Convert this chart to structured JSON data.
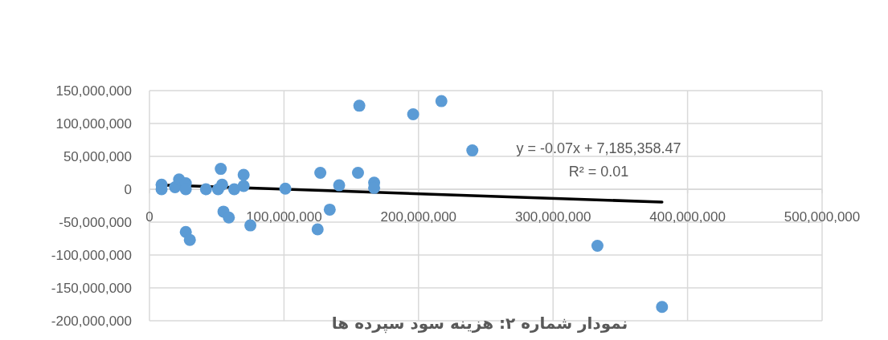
{
  "chart_data": {
    "type": "scatter",
    "title": "نمودار شماره ۲: هزینه سود سپرده ها",
    "annotations": [
      "y = -0.07x + 7,185,358.47",
      "R² = 0.01"
    ],
    "xlim": [
      0,
      500000000
    ],
    "ylim": [
      -200000000,
      150000000
    ],
    "xticks": [
      {
        "value": 0,
        "label": "0"
      },
      {
        "value": 100000000,
        "label": "100,000,000"
      },
      {
        "value": 200000000,
        "label": "200,000,000"
      },
      {
        "value": 300000000,
        "label": "300,000,000"
      },
      {
        "value": 400000000,
        "label": "400,000,000"
      },
      {
        "value": 500000000,
        "label": "500,000,000"
      }
    ],
    "yticks": [
      {
        "value": -200000000,
        "label": "-200,000,000"
      },
      {
        "value": -150000000,
        "label": "-150,000,000"
      },
      {
        "value": -100000000,
        "label": "-100,000,000"
      },
      {
        "value": -50000000,
        "label": "-50,000,000"
      },
      {
        "value": 0,
        "label": "0"
      },
      {
        "value": 50000000,
        "label": "50,000,000"
      },
      {
        "value": 100000000,
        "label": "100,000,000"
      },
      {
        "value": 150000000,
        "label": "150,000,000"
      }
    ],
    "grid": true,
    "marker": "circle",
    "series": [
      {
        "color": "#5b9bd5",
        "x": [
          9000000,
          9000000,
          19000000,
          22000000,
          27000000,
          27000000,
          42000000,
          51000000,
          53000000,
          54000000,
          55000000,
          59000000,
          63000000,
          70000000,
          70000000,
          75000000,
          27000000,
          30000000,
          101000000,
          125000000,
          127000000,
          134000000,
          141000000,
          155000000,
          156000000,
          167000000,
          167000000,
          196000000,
          217000000,
          240000000,
          333000000,
          381000000
        ],
        "values": [
          7000000,
          0,
          3000000,
          15000000,
          9000000,
          0,
          0,
          0,
          31000000,
          7000000,
          -34000000,
          -43000000,
          0,
          22000000,
          5000000,
          -55000000,
          -65000000,
          -77000000,
          1000000,
          -61000000,
          25000000,
          -31000000,
          6000000,
          25000000,
          127000000,
          10000000,
          2000000,
          114000000,
          134000000,
          59000000,
          -86000000,
          -179000000
        ]
      },
      {
        "type": "line",
        "color": "#000000",
        "marker": "none",
        "x": [
          9000000,
          381000000
        ],
        "values": [
          6500000,
          -19500000
        ]
      }
    ]
  }
}
